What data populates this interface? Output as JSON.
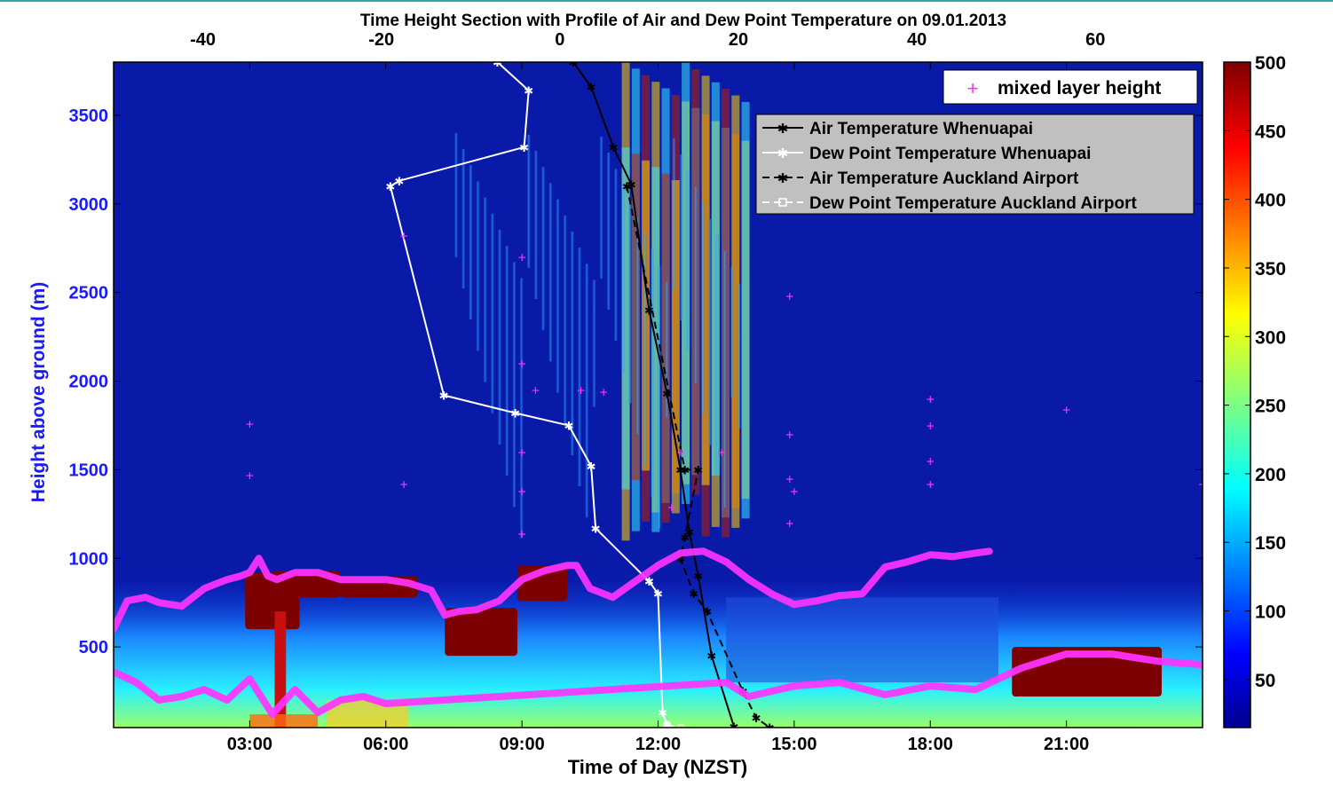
{
  "chart_data": {
    "type": "heatmap",
    "title": "Time Height Section with Profile of Air and Dew Point Temperature on 09.01.2013",
    "xlabel": "Time of Day (NZST)",
    "ylabel": "Height above ground (m)",
    "x_bottom_ticks": [
      "03:00",
      "06:00",
      "09:00",
      "12:00",
      "15:00",
      "18:00",
      "21:00"
    ],
    "x_bottom_tick_hours": [
      3,
      6,
      9,
      12,
      15,
      18,
      21
    ],
    "xlim_hours": [
      0,
      24
    ],
    "x_top_ticks": [
      "-40",
      "-20",
      "0",
      "20",
      "40",
      "60"
    ],
    "x_top_tick_values": [
      -40,
      -20,
      0,
      20,
      40,
      60
    ],
    "xlim_top": [
      -50,
      72
    ],
    "y_ticks": [
      "500",
      "1000",
      "1500",
      "2000",
      "2500",
      "3000",
      "3500"
    ],
    "y_tick_values": [
      500,
      1000,
      1500,
      2000,
      2500,
      3000,
      3500
    ],
    "ylim": [
      45,
      3800
    ],
    "colorbar": {
      "ticks": [
        "50",
        "100",
        "150",
        "200",
        "250",
        "300",
        "350",
        "400",
        "450",
        "500"
      ],
      "tick_values": [
        50,
        100,
        150,
        200,
        250,
        300,
        350,
        400,
        450,
        500
      ],
      "range": [
        15,
        500
      ],
      "colormap": "jet"
    },
    "legend_mlh": {
      "label": "mixed layer height",
      "color": "#ff33ff",
      "placement": "top-right"
    },
    "legend_profiles": [
      {
        "label": "Air Temperature Whenuapai",
        "color": "#000000",
        "dash": "solid",
        "marker": "star"
      },
      {
        "label": "Dew Point Temperature Whenuapai",
        "color": "#ffffff",
        "dash": "solid",
        "marker": "star"
      },
      {
        "label": "Air Temperature Auckland Airport",
        "color": "#000000",
        "dash": "dashed",
        "marker": "star"
      },
      {
        "label": "Dew Point Temperature Auckland Airport",
        "color": "#ffffff",
        "dash": "dashed",
        "marker": "square"
      }
    ],
    "series": [
      {
        "name": "Air Temperature Whenuapai",
        "x": [
          1.5,
          3.5,
          6,
          8,
          10,
          12,
          13.5,
          14.5,
          15.5,
          17,
          19.5
        ],
        "y": [
          3800,
          3660,
          3320,
          3110,
          2400,
          1930,
          1500,
          1150,
          900,
          450,
          50
        ]
      },
      {
        "name": "Dew Point Temperature Whenuapai",
        "x": [
          -7,
          -3.5,
          -4,
          -18,
          -19,
          -13,
          -5,
          1,
          3.5,
          4,
          10,
          11,
          11.5,
          12
        ],
        "y": [
          3800,
          3640,
          3320,
          3130,
          3100,
          1920,
          1820,
          1750,
          1520,
          1170,
          870,
          800,
          130,
          60
        ]
      },
      {
        "name": "Air Temperature Auckland Airport",
        "x": [
          7.5,
          14,
          15.5,
          14,
          13.5,
          15,
          16.5,
          20.5,
          22,
          23.5
        ],
        "y": [
          3100,
          1500,
          1500,
          1120,
          1000,
          800,
          700,
          250,
          100,
          45
        ]
      },
      {
        "name": "Dew Point Temperature Auckland Airport",
        "x": [
          12,
          13.5
        ],
        "y": [
          60,
          45
        ]
      }
    ],
    "mixed_layer_height": {
      "t": [
        0.0,
        0.3,
        0.7,
        1.0,
        1.5,
        2.0,
        2.5,
        2.8,
        3.0,
        3.2,
        3.4,
        3.6,
        4.0,
        4.5,
        5.0,
        5.5,
        6.0,
        6.5,
        7.0,
        7.3,
        7.6,
        8.0,
        8.5,
        9.0,
        9.5,
        10.0,
        10.2,
        10.5,
        11.0,
        11.5,
        12.0,
        12.5,
        13.0,
        13.5,
        14.0,
        14.5,
        15.0,
        15.5,
        16.0,
        16.5,
        17.0,
        17.5,
        18.0,
        18.5,
        19.0,
        19.3
      ],
      "h": [
        600,
        760,
        780,
        750,
        730,
        830,
        880,
        900,
        920,
        1000,
        900,
        880,
        920,
        920,
        880,
        880,
        880,
        860,
        820,
        680,
        700,
        710,
        760,
        880,
        930,
        960,
        960,
        830,
        780,
        870,
        960,
        1030,
        1040,
        980,
        880,
        800,
        740,
        760,
        790,
        800,
        950,
        980,
        1020,
        1010,
        1030,
        1040
      ]
    },
    "mixed_layer_height_lower": {
      "t": [
        0.0,
        0.5,
        1.0,
        1.5,
        2.0,
        2.5,
        3.0,
        3.5,
        4.0,
        4.5,
        5.0,
        5.5,
        6.0,
        13.5,
        14.0,
        15.0,
        16.0,
        17.0,
        18.0,
        19.0,
        20.0,
        21.0,
        22.0,
        23.0,
        24.0
      ],
      "h": [
        360,
        300,
        200,
        220,
        260,
        200,
        320,
        120,
        260,
        130,
        200,
        220,
        180,
        300,
        220,
        280,
        300,
        230,
        280,
        260,
        380,
        460,
        460,
        420,
        400
      ]
    }
  }
}
